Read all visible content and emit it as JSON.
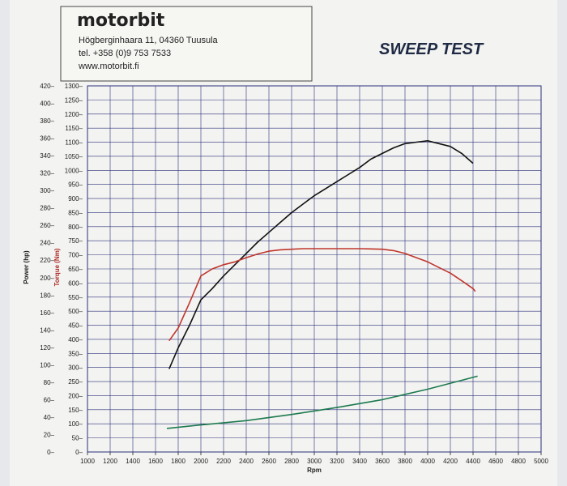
{
  "header": {
    "brand": "motorbit",
    "address": "Högberginhaara 11, 04360 Tuusula",
    "phone": "tel. +358 (0)9 753 7533",
    "website": "www.motorbit.fi",
    "title": "SWEEP TEST"
  },
  "chart_data": {
    "type": "line",
    "title": "SWEEP TEST",
    "xlabel": "Rpm",
    "ylabel_left": "Power (hp)",
    "ylabel_right": "Torque (Nm)",
    "xlim": [
      1000,
      5000
    ],
    "ylim_power": [
      0,
      420
    ],
    "ylim_torque": [
      0,
      1300
    ],
    "x_ticks": [
      "1000",
      "1200",
      "1400",
      "1600",
      "1800",
      "2000",
      "2200",
      "2400",
      "2600",
      "2800",
      "3000",
      "3200",
      "3400",
      "3600",
      "3800",
      "4000",
      "4200",
      "4400",
      "4600",
      "4800",
      "5000"
    ],
    "power_ticks": [
      "0",
      "20",
      "40",
      "60",
      "80",
      "100",
      "120",
      "140",
      "160",
      "180",
      "200",
      "220",
      "240",
      "260",
      "280",
      "300",
      "320",
      "340",
      "360",
      "380",
      "400",
      "420"
    ],
    "torque_ticks": [
      "0",
      "50",
      "100",
      "150",
      "200",
      "250",
      "300",
      "350",
      "400",
      "450",
      "500",
      "550",
      "600",
      "650",
      "700",
      "750",
      "800",
      "850",
      "900",
      "950",
      "1000",
      "1050",
      "1100",
      "1150",
      "1200",
      "1250",
      "1300"
    ],
    "grid": true,
    "series": [
      {
        "name": "Torque (Nm)",
        "axis": "torque",
        "color": "#111111",
        "x": [
          1720,
          1800,
          1900,
          2000,
          2100,
          2200,
          2300,
          2400,
          2500,
          2600,
          2700,
          2800,
          2900,
          3000,
          3100,
          3200,
          3300,
          3400,
          3500,
          3600,
          3700,
          3800,
          3900,
          4000,
          4100,
          4200,
          4300,
          4400
        ],
        "y": [
          295,
          370,
          450,
          540,
          580,
          625,
          665,
          705,
          745,
          780,
          815,
          850,
          880,
          910,
          935,
          960,
          985,
          1010,
          1040,
          1060,
          1080,
          1095,
          1100,
          1105,
          1095,
          1085,
          1060,
          1025
        ]
      },
      {
        "name": "Torque",
        "axis": "torque",
        "color": "#c0362c",
        "x": [
          1720,
          1800,
          1900,
          2000,
          2100,
          2200,
          2300,
          2400,
          2500,
          2600,
          2700,
          2800,
          2900,
          3000,
          3100,
          3200,
          3300,
          3400,
          3500,
          3600,
          3700,
          3800,
          3900,
          4000,
          4100,
          4200,
          4300,
          4400,
          4420
        ],
        "y": [
          395,
          440,
          530,
          625,
          650,
          665,
          675,
          690,
          703,
          713,
          718,
          720,
          722,
          722,
          722,
          722,
          722,
          722,
          721,
          720,
          715,
          705,
          690,
          675,
          655,
          635,
          608,
          580,
          570
        ]
      },
      {
        "name": "Power",
        "axis": "power",
        "color": "#1d7a4f",
        "x": [
          1700,
          2000,
          2400,
          2800,
          3200,
          3600,
          4000,
          4440
        ],
        "y": [
          27,
          31,
          36,
          43,
          51,
          60,
          72,
          87
        ]
      }
    ]
  }
}
